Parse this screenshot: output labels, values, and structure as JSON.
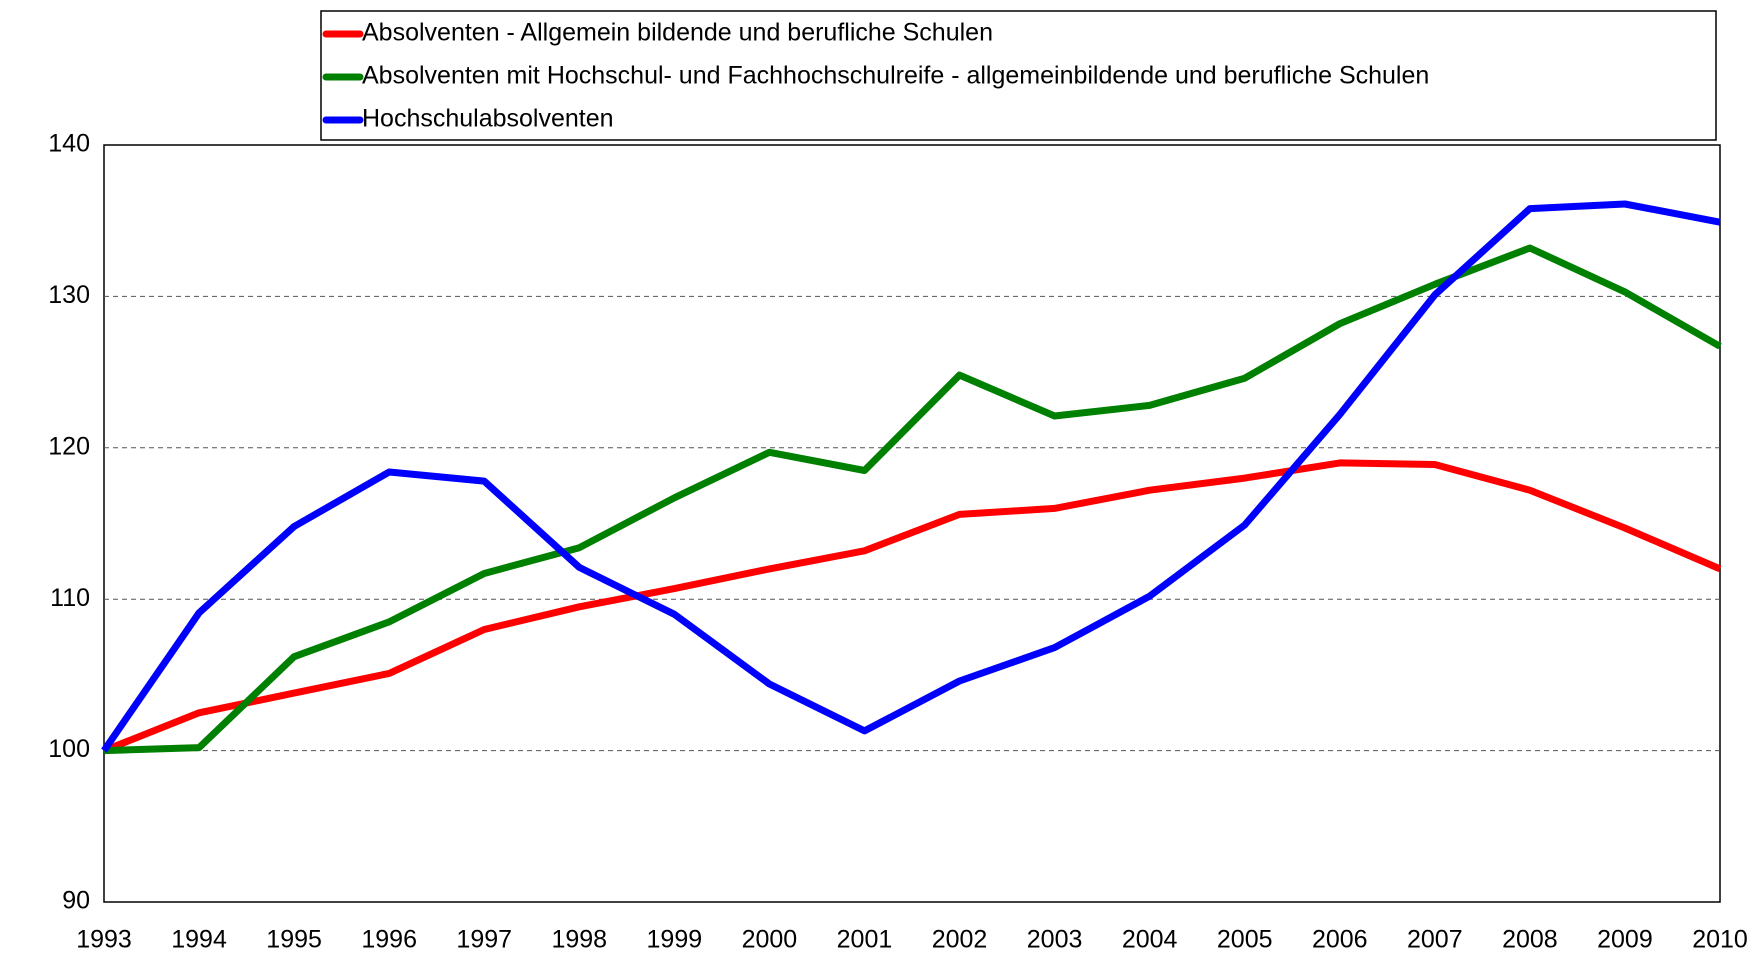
{
  "chart_data": {
    "type": "line",
    "categories": [
      "1993",
      "1994",
      "1995",
      "1996",
      "1997",
      "1998",
      "1999",
      "2000",
      "2001",
      "2002",
      "2003",
      "2004",
      "2005",
      "2006",
      "2007",
      "2008",
      "2009",
      "2010"
    ],
    "series": [
      {
        "name": "Absolventen - Allgemein bildende und berufliche Schulen",
        "color": "#ff0000",
        "values": [
          100,
          102.5,
          103.8,
          105.1,
          108,
          109.5,
          110.7,
          112,
          113.2,
          115.6,
          116,
          117.2,
          118,
          119,
          118.9,
          117.2,
          114.7,
          112
        ]
      },
      {
        "name": "Absolventen mit Hochschul- und Fachhochschulreife - allgemeinbildende und berufliche Schulen",
        "color": "#008000",
        "values": [
          100,
          100.2,
          106.2,
          108.5,
          111.7,
          113.4,
          116.7,
          119.7,
          118.5,
          124.8,
          122.1,
          122.8,
          124.6,
          128.2,
          130.8,
          133.2,
          130.3,
          126.7
        ]
      },
      {
        "name": "Hochschulabsolventen",
        "color": "#0000ff",
        "values": [
          100,
          109.1,
          114.8,
          118.4,
          117.8,
          112.1,
          109,
          104.4,
          101.3,
          104.6,
          106.8,
          110.2,
          114.9,
          122.2,
          130.1,
          135.8,
          136.1,
          134.9
        ]
      }
    ],
    "ylim": [
      90,
      140
    ],
    "yticks": [
      90,
      100,
      110,
      120,
      130,
      140
    ],
    "grid": true
  }
}
